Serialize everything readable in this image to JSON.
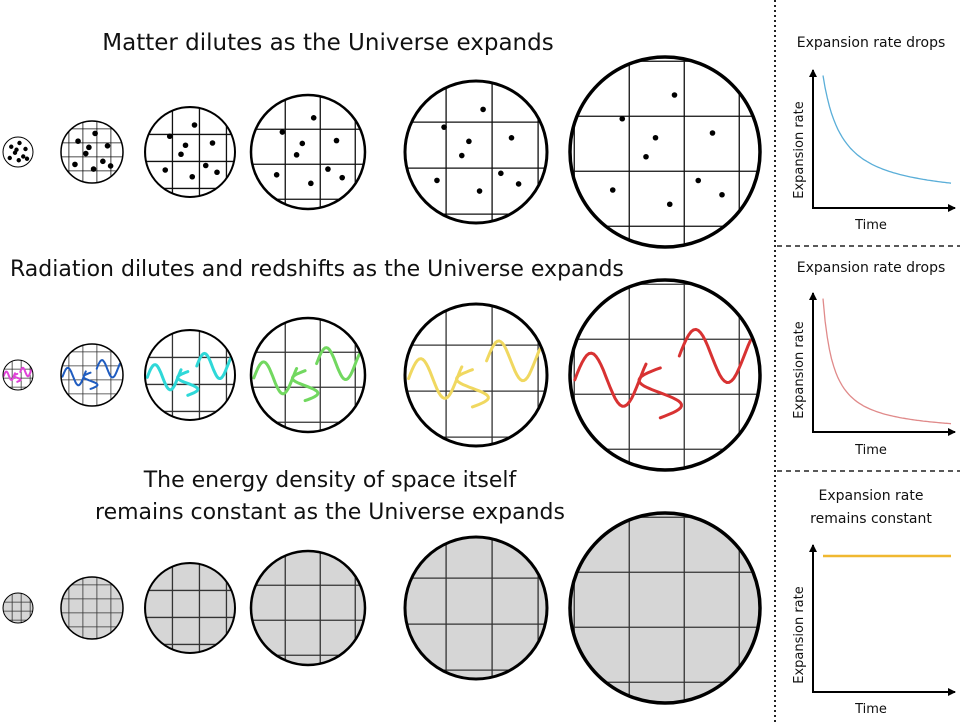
{
  "rows": [
    {
      "title_lines": [
        "Matter dilutes as the Universe expands"
      ],
      "kind": "matter"
    },
    {
      "title_lines": [
        "Radiation dilutes and redshifts as the Universe expands"
      ],
      "kind": "radiation",
      "wave_colors": [
        "#e044d8",
        "#1f5cc0",
        "#2fd8d8",
        "#72d860",
        "#f0d860",
        "#d83232"
      ]
    },
    {
      "title_lines": [
        "The energy density of space itself",
        "remains constant as the Universe expands"
      ],
      "kind": "vacuum",
      "fill_color": "#d6d6d6"
    }
  ],
  "panels": [
    {
      "title_lines": [
        "Expansion rate drops"
      ],
      "ylabel": "Expansion rate",
      "xlabel": "Time",
      "trend": "decreasing",
      "color": "#5aaed8"
    },
    {
      "title_lines": [
        "Expansion rate drops"
      ],
      "ylabel": "Expansion rate",
      "xlabel": "Time",
      "trend": "decreasing-steep",
      "color": "#e08a8a"
    },
    {
      "title_lines": [
        "Expansion rate",
        "remains constant"
      ],
      "ylabel": "Expansion rate",
      "xlabel": "Time",
      "trend": "constant",
      "color": "#f0b830"
    }
  ]
}
